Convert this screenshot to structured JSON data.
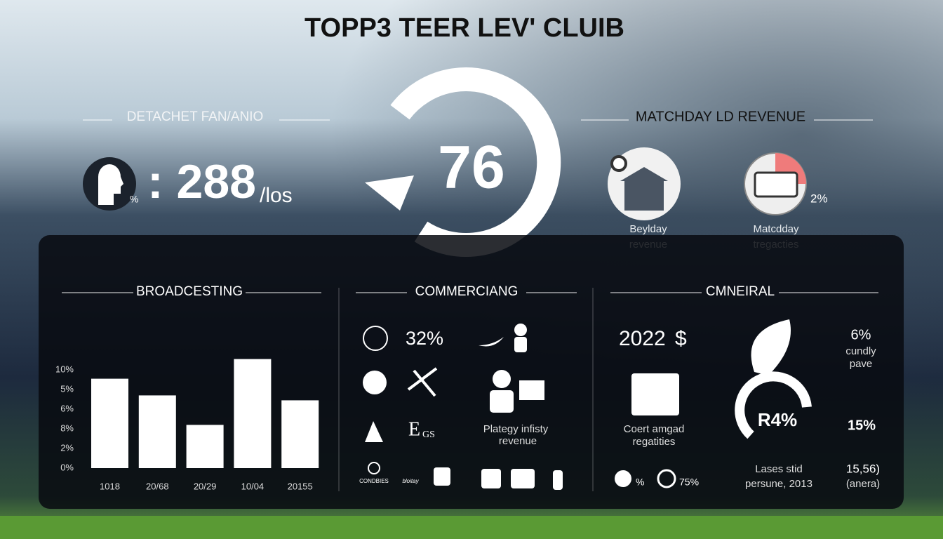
{
  "title": "TOPP3 TEER LEV' CLUIB",
  "fan_stat": {
    "label": "DETACHET FAN/ANIO",
    "prefix": "%",
    "value_text": ": 288",
    "suffix": "/los"
  },
  "center_stat": "76",
  "matchday": {
    "label": "MATCHDAY LD REVENUE",
    "items": [
      {
        "caption_1": "Beylday",
        "caption_2": "revenue"
      },
      {
        "caption_1": "Matcdday",
        "caption_2": "tregacties",
        "note": "2%"
      }
    ]
  },
  "broadcasting": {
    "title": "BROADCESTING",
    "axis_labels": [
      "10%",
      "5%",
      "6%",
      "8%",
      "2%",
      "0%"
    ],
    "categories": [
      "1018",
      "20/68",
      "20/29",
      "10/04",
      "20155"
    ],
    "values": [
      9.1,
      7.4,
      4.4,
      11.1,
      6.9
    ],
    "ylim": [
      0,
      10
    ]
  },
  "commercial": {
    "title": "COMMERCIANG",
    "stat": "32%",
    "mark_big": "E",
    "mark_small": "GS",
    "caption_1": "Plategy infisty",
    "caption_2": "revenue",
    "small_1": "CONDBIES",
    "small_2": "bloitay"
  },
  "general": {
    "title": "CMNEIRAL",
    "year": "2022",
    "currency": "$",
    "pct_1": "6%",
    "pct_1_caption_1": "cundly",
    "pct_1_caption_2": "pave",
    "caption_1": "Coert amgad",
    "caption_2": "regatities",
    "ring": "R4%",
    "pct_2": "15%",
    "note_1": "Lases stid",
    "note_2": "persune, 2013",
    "figure_1": "15,56)",
    "figure_2": "(anera)",
    "small_pct": "%",
    "small_pct_2": "75%"
  }
}
